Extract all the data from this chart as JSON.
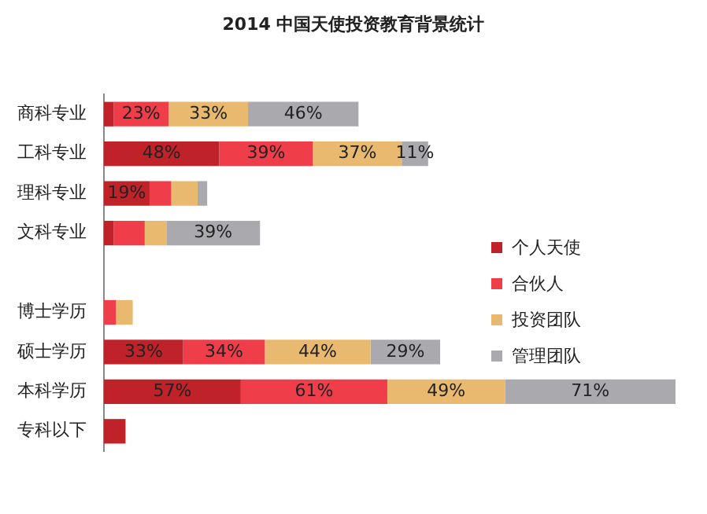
{
  "chart_data": {
    "type": "bar",
    "orientation": "horizontal",
    "stacked": true,
    "title": "2014 中国天使投资教育背景统计",
    "categories": [
      "商科专业",
      "工科专业",
      "理科专业",
      "文科专业",
      null,
      "博士学历",
      "硕士学历",
      "本科学历",
      "专科以下"
    ],
    "series": [
      {
        "name": "个人天使",
        "color": "#c0222a",
        "values": [
          4,
          48,
          19,
          4,
          null,
          0,
          33,
          57,
          9
        ],
        "value_labels": [
          null,
          "48%",
          "19%",
          null,
          null,
          null,
          "33%",
          "57%",
          null
        ]
      },
      {
        "name": "合伙人",
        "color": "#ef3d4a",
        "values": [
          23,
          39,
          9,
          13,
          null,
          5,
          34,
          61,
          0
        ],
        "value_labels": [
          "23%",
          "39%",
          null,
          null,
          null,
          null,
          "34%",
          "61%",
          null
        ]
      },
      {
        "name": "投资团队",
        "color": "#e8b96e",
        "values": [
          33,
          37,
          11,
          9,
          null,
          7,
          44,
          49,
          0
        ],
        "value_labels": [
          "33%",
          "37%",
          null,
          null,
          null,
          null,
          "44%",
          "49%",
          null
        ]
      },
      {
        "name": "管理团队",
        "color": "#a9a9ae",
        "values": [
          46,
          11,
          4,
          39,
          null,
          0,
          29,
          71,
          0
        ],
        "value_labels": [
          "46%",
          "11%",
          null,
          "39%",
          null,
          null,
          "29%",
          "71%",
          null
        ]
      }
    ],
    "legend": "right"
  }
}
